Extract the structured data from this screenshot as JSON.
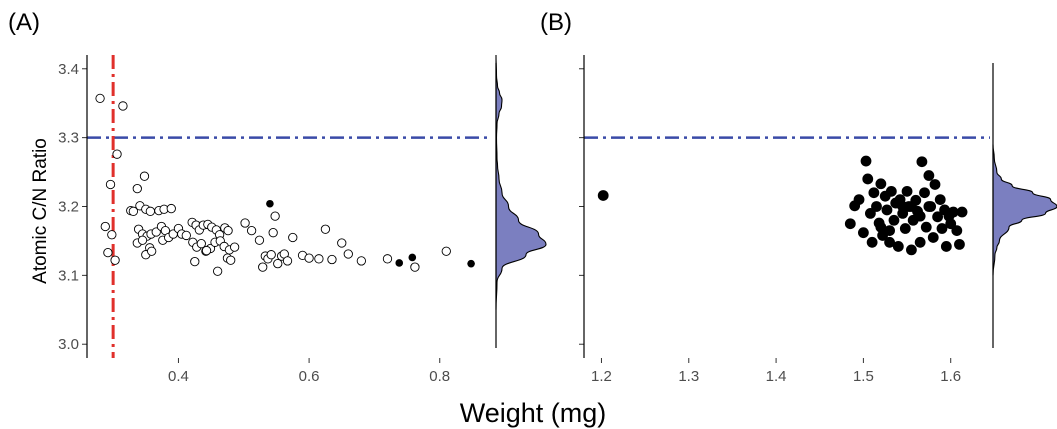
{
  "chart_data": [
    {
      "type": "scatter",
      "panel_label": "(A)",
      "xlabel": "Weight (mg)",
      "ylabel": "Atomic C/N Ratio",
      "xlim": [
        0.26,
        0.88
      ],
      "ylim": [
        2.98,
        3.42
      ],
      "x_ticks": [
        "0.4",
        "0.6",
        "0.8"
      ],
      "x_tick_values": [
        0.4,
        0.6,
        0.8
      ],
      "y_ticks": [
        "3.0",
        "3.1",
        "3.2",
        "3.3",
        "3.4"
      ],
      "y_tick_values": [
        3.0,
        3.1,
        3.2,
        3.3,
        3.4
      ],
      "grid": false,
      "reference_lines": [
        {
          "orientation": "horizontal",
          "value": 3.3,
          "style": "dash-dot",
          "color": "#3a4ba8"
        },
        {
          "orientation": "vertical",
          "value": 0.3,
          "style": "dash-dot",
          "color": "#e0302b"
        }
      ],
      "open_points": [
        [
          0.28,
          3.357
        ],
        [
          0.315,
          3.346
        ],
        [
          0.306,
          3.276
        ],
        [
          0.296,
          3.232
        ],
        [
          0.288,
          3.171
        ],
        [
          0.298,
          3.159
        ],
        [
          0.292,
          3.133
        ],
        [
          0.303,
          3.122
        ],
        [
          0.327,
          3.194
        ],
        [
          0.331,
          3.193
        ],
        [
          0.337,
          3.226
        ],
        [
          0.348,
          3.244
        ],
        [
          0.341,
          3.201
        ],
        [
          0.35,
          3.196
        ],
        [
          0.357,
          3.193
        ],
        [
          0.37,
          3.194
        ],
        [
          0.378,
          3.196
        ],
        [
          0.389,
          3.197
        ],
        [
          0.339,
          3.167
        ],
        [
          0.345,
          3.16
        ],
        [
          0.352,
          3.157
        ],
        [
          0.358,
          3.16
        ],
        [
          0.366,
          3.163
        ],
        [
          0.374,
          3.171
        ],
        [
          0.38,
          3.165
        ],
        [
          0.337,
          3.147
        ],
        [
          0.345,
          3.151
        ],
        [
          0.356,
          3.14
        ],
        [
          0.35,
          3.13
        ],
        [
          0.359,
          3.135
        ],
        [
          0.376,
          3.151
        ],
        [
          0.385,
          3.155
        ],
        [
          0.392,
          3.16
        ],
        [
          0.4,
          3.168
        ],
        [
          0.405,
          3.16
        ],
        [
          0.412,
          3.158
        ],
        [
          0.421,
          3.177
        ],
        [
          0.427,
          3.173
        ],
        [
          0.432,
          3.166
        ],
        [
          0.438,
          3.173
        ],
        [
          0.445,
          3.174
        ],
        [
          0.451,
          3.17
        ],
        [
          0.458,
          3.166
        ],
        [
          0.463,
          3.159
        ],
        [
          0.471,
          3.169
        ],
        [
          0.476,
          3.165
        ],
        [
          0.422,
          3.148
        ],
        [
          0.428,
          3.141
        ],
        [
          0.435,
          3.146
        ],
        [
          0.442,
          3.135
        ],
        [
          0.449,
          3.139
        ],
        [
          0.456,
          3.148
        ],
        [
          0.464,
          3.15
        ],
        [
          0.47,
          3.142
        ],
        [
          0.478,
          3.137
        ],
        [
          0.486,
          3.141
        ],
        [
          0.425,
          3.12
        ],
        [
          0.443,
          3.136
        ],
        [
          0.46,
          3.106
        ],
        [
          0.475,
          3.125
        ],
        [
          0.48,
          3.122
        ],
        [
          0.502,
          3.176
        ],
        [
          0.512,
          3.165
        ],
        [
          0.524,
          3.151
        ],
        [
          0.529,
          3.112
        ],
        [
          0.533,
          3.128
        ],
        [
          0.537,
          3.124
        ],
        [
          0.542,
          3.13
        ],
        [
          0.548,
          3.186
        ],
        [
          0.545,
          3.162
        ],
        [
          0.552,
          3.117
        ],
        [
          0.558,
          3.128
        ],
        [
          0.562,
          3.131
        ],
        [
          0.567,
          3.121
        ],
        [
          0.575,
          3.155
        ],
        [
          0.59,
          3.129
        ],
        [
          0.6,
          3.125
        ],
        [
          0.615,
          3.124
        ],
        [
          0.625,
          3.167
        ],
        [
          0.635,
          3.123
        ],
        [
          0.65,
          3.147
        ],
        [
          0.66,
          3.131
        ],
        [
          0.68,
          3.121
        ],
        [
          0.72,
          3.124
        ],
        [
          0.762,
          3.112
        ],
        [
          0.81,
          3.135
        ]
      ],
      "filled_points": [
        [
          0.54,
          3.204
        ],
        [
          0.738,
          3.118
        ],
        [
          0.758,
          3.126
        ],
        [
          0.848,
          3.117
        ]
      ],
      "marginal_density": {
        "axis": "y",
        "fill": "#7b7fc0",
        "y": [
          3.05,
          3.09,
          3.11,
          3.13,
          3.145,
          3.16,
          3.18,
          3.2,
          3.22,
          3.24,
          3.26,
          3.27,
          3.3,
          3.32,
          3.335,
          3.345,
          3.355,
          3.365,
          3.375,
          3.39,
          3.42
        ],
        "density": [
          0,
          0.02,
          0.12,
          0.6,
          1.0,
          0.85,
          0.45,
          0.25,
          0.12,
          0.06,
          0.03,
          0.02,
          0.01,
          0.02,
          0.06,
          0.11,
          0.12,
          0.07,
          0.03,
          0.01,
          0
        ]
      }
    },
    {
      "type": "scatter",
      "panel_label": "(B)",
      "xlim": [
        1.18,
        1.645
      ],
      "ylim": [
        2.98,
        3.42
      ],
      "x_ticks": [
        "1.2",
        "1.3",
        "1.4",
        "1.5",
        "1.6"
      ],
      "x_tick_values": [
        1.2,
        1.3,
        1.4,
        1.5,
        1.6
      ],
      "grid": false,
      "reference_lines": [
        {
          "orientation": "horizontal",
          "value": 3.3,
          "style": "dash-dot",
          "color": "#3a4ba8"
        }
      ],
      "filled_points": [
        [
          1.202,
          3.216
        ],
        [
          1.485,
          3.175
        ],
        [
          1.49,
          3.201
        ],
        [
          1.495,
          3.21
        ],
        [
          1.5,
          3.162
        ],
        [
          1.503,
          3.266
        ],
        [
          1.505,
          3.24
        ],
        [
          1.508,
          3.19
        ],
        [
          1.51,
          3.148
        ],
        [
          1.512,
          3.22
        ],
        [
          1.515,
          3.2
        ],
        [
          1.518,
          3.176
        ],
        [
          1.52,
          3.233
        ],
        [
          1.522,
          3.158
        ],
        [
          1.525,
          3.215
        ],
        [
          1.527,
          3.195
        ],
        [
          1.53,
          3.148
        ],
        [
          1.532,
          3.222
        ],
        [
          1.535,
          3.18
        ],
        [
          1.537,
          3.205
        ],
        [
          1.54,
          3.142
        ],
        [
          1.542,
          3.21
        ],
        [
          1.545,
          3.19
        ],
        [
          1.548,
          3.168
        ],
        [
          1.55,
          3.222
        ],
        [
          1.552,
          3.2
        ],
        [
          1.555,
          3.137
        ],
        [
          1.557,
          3.18
        ],
        [
          1.56,
          3.209
        ],
        [
          1.562,
          3.193
        ],
        [
          1.565,
          3.148
        ],
        [
          1.567,
          3.265
        ],
        [
          1.57,
          3.22
        ],
        [
          1.572,
          3.17
        ],
        [
          1.575,
          3.245
        ],
        [
          1.577,
          3.2
        ],
        [
          1.58,
          3.155
        ],
        [
          1.582,
          3.232
        ],
        [
          1.585,
          3.185
        ],
        [
          1.588,
          3.21
        ],
        [
          1.59,
          3.168
        ],
        [
          1.593,
          3.195
        ],
        [
          1.595,
          3.142
        ],
        [
          1.598,
          3.186
        ],
        [
          1.6,
          3.175
        ],
        [
          1.603,
          3.192
        ],
        [
          1.607,
          3.165
        ],
        [
          1.61,
          3.145
        ],
        [
          1.613,
          3.192
        ],
        [
          1.52,
          3.17
        ],
        [
          1.53,
          3.165
        ],
        [
          1.545,
          3.2
        ],
        [
          1.555,
          3.2
        ],
        [
          1.565,
          3.186
        ],
        [
          1.575,
          3.2
        ]
      ],
      "marginal_density": {
        "axis": "y",
        "fill": "#7b7fc0",
        "y": [
          3.1,
          3.13,
          3.14,
          3.15,
          3.17,
          3.18,
          3.19,
          3.2,
          3.21,
          3.22,
          3.23,
          3.24,
          3.25,
          3.27,
          3.29
        ],
        "density": [
          0,
          0.03,
          0.06,
          0.1,
          0.25,
          0.45,
          0.82,
          1.0,
          0.9,
          0.62,
          0.3,
          0.13,
          0.06,
          0.02,
          0
        ]
      }
    }
  ]
}
